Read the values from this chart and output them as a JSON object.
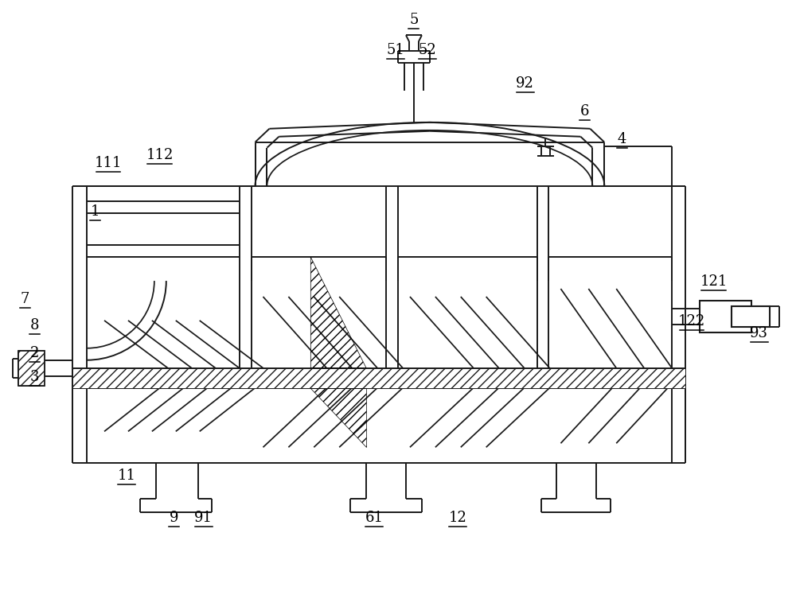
{
  "background_color": "#ffffff",
  "line_color": "#1a1a1a",
  "line_width": 1.4,
  "figsize": [
    10.0,
    7.43
  ],
  "dpi": 100
}
